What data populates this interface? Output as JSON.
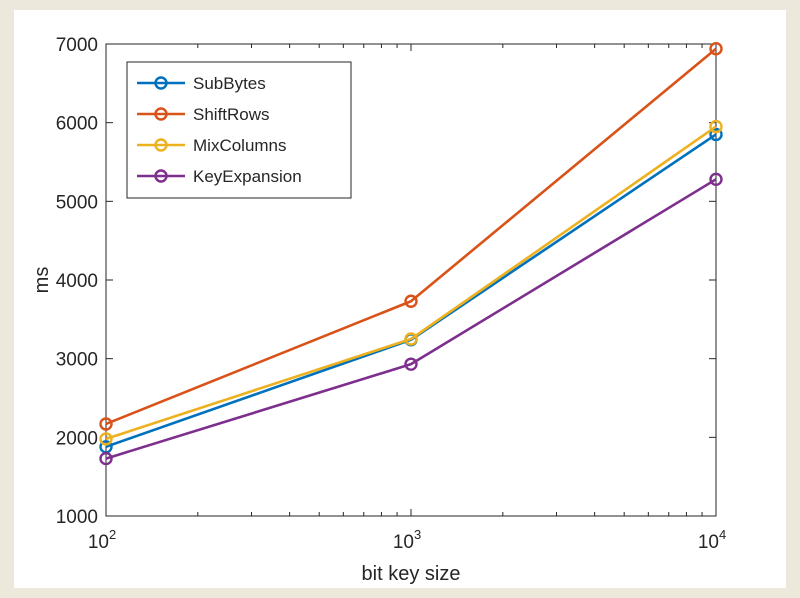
{
  "chart_data": {
    "type": "line",
    "title": "",
    "xlabel": "bit key size",
    "ylabel": "ms",
    "x": [
      100,
      1000,
      10000
    ],
    "x_scale": "log",
    "xlim": [
      100,
      10000
    ],
    "xtick_labels": [
      {
        "base": "10",
        "exp": "2"
      },
      {
        "base": "10",
        "exp": "3"
      },
      {
        "base": "10",
        "exp": "4"
      }
    ],
    "ylim": [
      1000,
      7000
    ],
    "yticks": [
      1000,
      2000,
      3000,
      4000,
      5000,
      6000,
      7000
    ],
    "ytick_labels": [
      "1000",
      "2000",
      "3000",
      "4000",
      "5000",
      "6000",
      "7000"
    ],
    "grid": false,
    "legend_position": "top-left",
    "series": [
      {
        "name": "SubBytes",
        "color": "#0072bd",
        "values": [
          1880,
          3240,
          5850
        ]
      },
      {
        "name": "ShiftRows",
        "color": "#d95319",
        "values": [
          2170,
          3730,
          6940
        ]
      },
      {
        "name": "MixColumns",
        "color": "#edb120",
        "values": [
          1980,
          3250,
          5950
        ]
      },
      {
        "name": "KeyExpansion",
        "color": "#7e2f8e",
        "values": [
          1730,
          2930,
          5280
        ]
      }
    ]
  }
}
